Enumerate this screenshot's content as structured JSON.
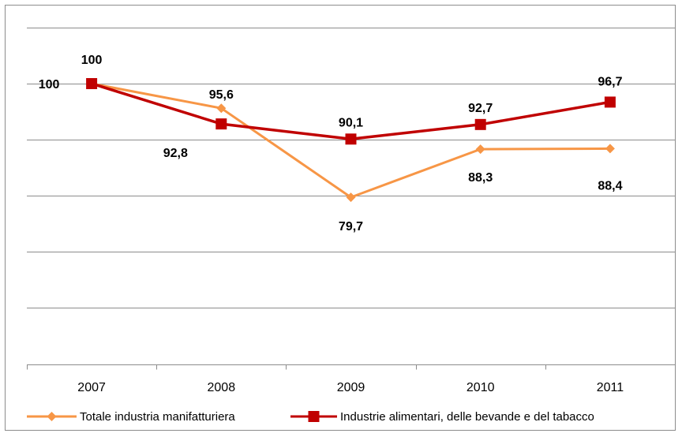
{
  "chart_data": {
    "type": "line",
    "categories": [
      "2007",
      "2008",
      "2009",
      "2010",
      "2011"
    ],
    "series": [
      {
        "name": "Totale industria manifatturiera",
        "values": [
          100,
          95.6,
          79.7,
          88.3,
          88.4
        ],
        "labels": [
          "",
          "95,6",
          "79,7",
          "88,3",
          "88,4"
        ],
        "color": "#f79646",
        "marker": "diamond"
      },
      {
        "name": "Industrie alimentari, delle bevande e del tabacco",
        "values": [
          100,
          92.8,
          90.1,
          92.7,
          96.7
        ],
        "labels": [
          "100",
          "92,8",
          "90,1",
          "92,7",
          "96,7"
        ],
        "color": "#c00000",
        "marker": "square"
      }
    ],
    "extra_labels": [
      {
        "series": 0,
        "index": 0,
        "text": "100"
      }
    ],
    "ylim": [
      60,
      105
    ],
    "gridlines": [
      60,
      70,
      80,
      90,
      100
    ],
    "grid": true,
    "legend": "bottom"
  }
}
